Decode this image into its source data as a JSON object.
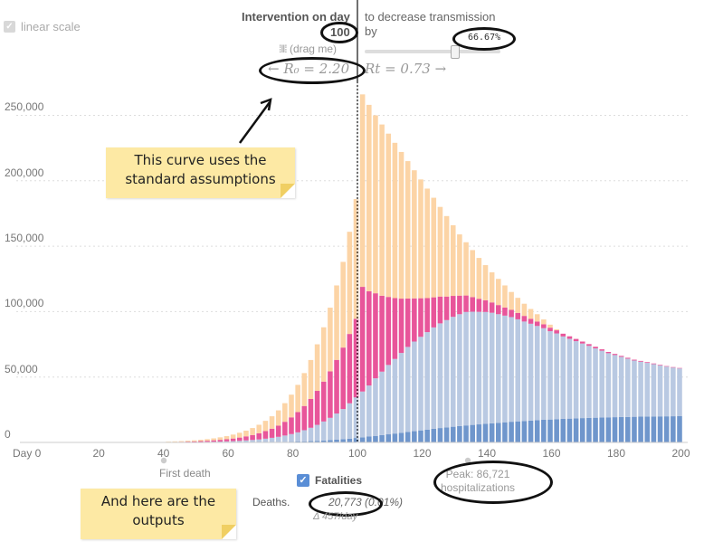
{
  "controls": {
    "linear_scale_label": "linear scale",
    "intervention_label": "Intervention on day",
    "intervention_day": "100",
    "drag_hint": "(drag me)",
    "decrease_label": "to decrease transmission",
    "by_label": "by",
    "decrease_pct": "66.67%",
    "decrease_fraction": 0.6667,
    "r0_text": "← R₀ = 2.20",
    "rt_text": "Rt = 0.73 →"
  },
  "annotations": {
    "top_note": [
      "This curve uses the",
      "standard assumptions"
    ],
    "bottom_note": [
      "And here are the",
      "outputs"
    ]
  },
  "markers": {
    "first_death_label": "First death",
    "first_death_day": 40,
    "peak_label": "Peak: 86,721",
    "peak_sub": "hospitalizations",
    "peak_day": 134
  },
  "outputs": {
    "fatalities_label": "Fatalities",
    "deaths_label": "Deaths.",
    "deaths_value": "20,773 (0.01%)",
    "delta_text": "Δ 457/day"
  },
  "colors": {
    "exposed": "#fcd4a6",
    "infectious": "#e8559a",
    "hospitalized": "#b9c9e2",
    "fatalities": "#6f96cc",
    "grid": "#dddddd",
    "note_bg": "#fde9a4"
  },
  "chart_data": {
    "type": "bar",
    "stacked": true,
    "x_ticks": [
      0,
      20,
      40,
      60,
      80,
      100,
      120,
      140,
      160,
      180,
      200
    ],
    "x_tick_prefix_first": "Day ",
    "xlim": [
      0,
      200
    ],
    "ylim": [
      0,
      260000
    ],
    "y_ticks": [
      0,
      50000,
      100000,
      150000,
      200000,
      250000
    ],
    "y_tick_labels": [
      "0",
      "50,000",
      "100,000",
      "150,000",
      "200,000",
      "250,000"
    ],
    "grid": true,
    "intervention_day": 100,
    "series_order": [
      "fatalities",
      "hospitalized",
      "infectious",
      "exposed"
    ],
    "bars": [
      {
        "day": 42,
        "total": 600,
        "infectious": 200,
        "hospitalized": 100,
        "fatalities": 0
      },
      {
        "day": 44,
        "total": 800,
        "infectious": 260,
        "hospitalized": 120,
        "fatalities": 10
      },
      {
        "day": 46,
        "total": 1000,
        "infectious": 330,
        "hospitalized": 150,
        "fatalities": 15
      },
      {
        "day": 48,
        "total": 1300,
        "infectious": 420,
        "hospitalized": 200,
        "fatalities": 20
      },
      {
        "day": 50,
        "total": 1600,
        "infectious": 530,
        "hospitalized": 250,
        "fatalities": 25
      },
      {
        "day": 52,
        "total": 2000,
        "infectious": 670,
        "hospitalized": 320,
        "fatalities": 30
      },
      {
        "day": 54,
        "total": 2500,
        "infectious": 840,
        "hospitalized": 400,
        "fatalities": 40
      },
      {
        "day": 56,
        "total": 3100,
        "infectious": 1050,
        "hospitalized": 500,
        "fatalities": 50
      },
      {
        "day": 58,
        "total": 3900,
        "infectious": 1300,
        "hospitalized": 600,
        "fatalities": 60
      },
      {
        "day": 60,
        "total": 4800,
        "infectious": 1600,
        "hospitalized": 750,
        "fatalities": 70
      },
      {
        "day": 62,
        "total": 6000,
        "infectious": 2000,
        "hospitalized": 900,
        "fatalities": 90
      },
      {
        "day": 64,
        "total": 7400,
        "infectious": 2500,
        "hospitalized": 1100,
        "fatalities": 110
      },
      {
        "day": 66,
        "total": 9000,
        "infectious": 3100,
        "hospitalized": 1400,
        "fatalities": 140
      },
      {
        "day": 68,
        "total": 11000,
        "infectious": 3800,
        "hospitalized": 1700,
        "fatalities": 170
      },
      {
        "day": 70,
        "total": 13500,
        "infectious": 4700,
        "hospitalized": 2100,
        "fatalities": 210
      },
      {
        "day": 72,
        "total": 16500,
        "infectious": 5800,
        "hospitalized": 2600,
        "fatalities": 260
      },
      {
        "day": 74,
        "total": 20000,
        "infectious": 7000,
        "hospitalized": 3200,
        "fatalities": 320
      },
      {
        "day": 76,
        "total": 24500,
        "infectious": 8600,
        "hospitalized": 3900,
        "fatalities": 390
      },
      {
        "day": 78,
        "total": 30000,
        "infectious": 10500,
        "hospitalized": 4800,
        "fatalities": 480
      },
      {
        "day": 80,
        "total": 36500,
        "infectious": 12800,
        "hospitalized": 5800,
        "fatalities": 580
      },
      {
        "day": 82,
        "total": 44000,
        "infectious": 15500,
        "hospitalized": 7000,
        "fatalities": 700
      },
      {
        "day": 84,
        "total": 53000,
        "infectious": 18500,
        "hospitalized": 8500,
        "fatalities": 850
      },
      {
        "day": 86,
        "total": 63000,
        "infectious": 22000,
        "hospitalized": 10200,
        "fatalities": 1000
      },
      {
        "day": 88,
        "total": 75000,
        "infectious": 26000,
        "hospitalized": 12200,
        "fatalities": 1200
      },
      {
        "day": 90,
        "total": 88000,
        "infectious": 30500,
        "hospitalized": 14500,
        "fatalities": 1500
      },
      {
        "day": 92,
        "total": 103000,
        "infectious": 35500,
        "hospitalized": 17000,
        "fatalities": 1800
      },
      {
        "day": 94,
        "total": 120000,
        "infectious": 41000,
        "hospitalized": 20000,
        "fatalities": 2100
      },
      {
        "day": 96,
        "total": 138000,
        "infectious": 47000,
        "hospitalized": 23000,
        "fatalities": 2500
      },
      {
        "day": 98,
        "total": 161000,
        "infectious": 53000,
        "hospitalized": 27000,
        "fatalities": 2900
      },
      {
        "day": 100,
        "total": 186000,
        "infectious": 60000,
        "hospitalized": 31000,
        "fatalities": 3400
      },
      {
        "day": 102,
        "total": 266000,
        "infectious": 80000,
        "hospitalized": 35000,
        "fatalities": 3900
      },
      {
        "day": 104,
        "total": 258000,
        "infectious": 72000,
        "hospitalized": 39000,
        "fatalities": 4500
      },
      {
        "day": 106,
        "total": 250000,
        "infectious": 65000,
        "hospitalized": 44000,
        "fatalities": 5000
      },
      {
        "day": 108,
        "total": 243000,
        "infectious": 58000,
        "hospitalized": 48500,
        "fatalities": 5600
      },
      {
        "day": 110,
        "total": 236000,
        "infectious": 52000,
        "hospitalized": 53000,
        "fatalities": 6200
      },
      {
        "day": 112,
        "total": 229000,
        "infectious": 46500,
        "hospitalized": 57000,
        "fatalities": 6800
      },
      {
        "day": 114,
        "total": 222000,
        "infectious": 41500,
        "hospitalized": 61000,
        "fatalities": 7400
      },
      {
        "day": 116,
        "total": 215000,
        "infectious": 37000,
        "hospitalized": 65000,
        "fatalities": 8000
      },
      {
        "day": 118,
        "total": 208000,
        "infectious": 33000,
        "hospitalized": 68500,
        "fatalities": 8600
      },
      {
        "day": 120,
        "total": 201000,
        "infectious": 29500,
        "hospitalized": 71500,
        "fatalities": 9200
      },
      {
        "day": 122,
        "total": 194000,
        "infectious": 26000,
        "hospitalized": 74500,
        "fatalities": 9800
      },
      {
        "day": 124,
        "total": 187000,
        "infectious": 23000,
        "hospitalized": 77500,
        "fatalities": 10400
      },
      {
        "day": 126,
        "total": 180000,
        "infectious": 20500,
        "hospitalized": 80000,
        "fatalities": 11000
      },
      {
        "day": 128,
        "total": 173000,
        "infectious": 18000,
        "hospitalized": 82000,
        "fatalities": 11500
      },
      {
        "day": 130,
        "total": 166000,
        "infectious": 16000,
        "hospitalized": 84000,
        "fatalities": 12000
      },
      {
        "day": 132,
        "total": 159000,
        "infectious": 14200,
        "hospitalized": 85500,
        "fatalities": 12500
      },
      {
        "day": 134,
        "total": 153000,
        "infectious": 12600,
        "hospitalized": 86700,
        "fatalities": 13000
      },
      {
        "day": 136,
        "total": 147000,
        "infectious": 11200,
        "hospitalized": 86500,
        "fatalities": 13400
      },
      {
        "day": 138,
        "total": 141000,
        "infectious": 10000,
        "hospitalized": 86000,
        "fatalities": 13800
      },
      {
        "day": 140,
        "total": 135500,
        "infectious": 8900,
        "hospitalized": 85500,
        "fatalities": 14200
      },
      {
        "day": 142,
        "total": 130000,
        "infectious": 7900,
        "hospitalized": 84500,
        "fatalities": 14600
      },
      {
        "day": 144,
        "total": 125000,
        "infectious": 7000,
        "hospitalized": 83000,
        "fatalities": 15000
      },
      {
        "day": 146,
        "total": 120000,
        "infectious": 6200,
        "hospitalized": 81500,
        "fatalities": 15400
      },
      {
        "day": 148,
        "total": 115000,
        "infectious": 5500,
        "hospitalized": 80000,
        "fatalities": 15800
      },
      {
        "day": 150,
        "total": 110500,
        "infectious": 4900,
        "hospitalized": 78000,
        "fatalities": 16100
      },
      {
        "day": 152,
        "total": 106000,
        "infectious": 4300,
        "hospitalized": 76000,
        "fatalities": 16400
      },
      {
        "day": 154,
        "total": 102000,
        "infectious": 3800,
        "hospitalized": 74000,
        "fatalities": 16700
      },
      {
        "day": 156,
        "total": 98000,
        "infectious": 3400,
        "hospitalized": 72000,
        "fatalities": 17000
      },
      {
        "day": 158,
        "total": 94000,
        "infectious": 3000,
        "hospitalized": 70000,
        "fatalities": 17300
      },
      {
        "day": 160,
        "total": 90000,
        "infectious": 2700,
        "hospitalized": 67500,
        "fatalities": 17500
      },
      {
        "day": 162,
        "total": 86500,
        "infectious": 2400,
        "hospitalized": 65500,
        "fatalities": 17800
      },
      {
        "day": 164,
        "total": 83000,
        "infectious": 2100,
        "hospitalized": 63000,
        "fatalities": 18000
      },
      {
        "day": 166,
        "total": 80000,
        "infectious": 1900,
        "hospitalized": 61000,
        "fatalities": 18200
      },
      {
        "day": 168,
        "total": 77000,
        "infectious": 1700,
        "hospitalized": 59000,
        "fatalities": 18400
      },
      {
        "day": 170,
        "total": 74000,
        "infectious": 1500,
        "hospitalized": 57000,
        "fatalities": 18600
      },
      {
        "day": 172,
        "total": 71000,
        "infectious": 1350,
        "hospitalized": 55000,
        "fatalities": 18800
      },
      {
        "day": 174,
        "total": 68500,
        "infectious": 1200,
        "hospitalized": 53000,
        "fatalities": 18900
      },
      {
        "day": 176,
        "total": 66000,
        "infectious": 1050,
        "hospitalized": 51000,
        "fatalities": 19100
      },
      {
        "day": 178,
        "total": 63500,
        "infectious": 950,
        "hospitalized": 49000,
        "fatalities": 19200
      },
      {
        "day": 180,
        "total": 61000,
        "infectious": 850,
        "hospitalized": 47500,
        "fatalities": 19300
      },
      {
        "day": 182,
        "total": 59000,
        "infectious": 750,
        "hospitalized": 46000,
        "fatalities": 19400
      },
      {
        "day": 184,
        "total": 57000,
        "infectious": 700,
        "hospitalized": 44500,
        "fatalities": 19500
      },
      {
        "day": 186,
        "total": 55000,
        "infectious": 650,
        "hospitalized": 43000,
        "fatalities": 19600
      },
      {
        "day": 188,
        "total": 53500,
        "infectious": 600,
        "hospitalized": 42000,
        "fatalities": 19700
      },
      {
        "day": 190,
        "total": 52000,
        "infectious": 550,
        "hospitalized": 41000,
        "fatalities": 19800
      },
      {
        "day": 192,
        "total": 50500,
        "infectious": 500,
        "hospitalized": 40000,
        "fatalities": 19850
      },
      {
        "day": 194,
        "total": 49000,
        "infectious": 450,
        "hospitalized": 39000,
        "fatalities": 19900
      },
      {
        "day": 196,
        "total": 47800,
        "infectious": 400,
        "hospitalized": 38000,
        "fatalities": 19950
      },
      {
        "day": 198,
        "total": 46500,
        "infectious": 380,
        "hospitalized": 37200,
        "fatalities": 20000
      },
      {
        "day": 200,
        "total": 45500,
        "infectious": 350,
        "hospitalized": 36500,
        "fatalities": 20050
      }
    ]
  }
}
